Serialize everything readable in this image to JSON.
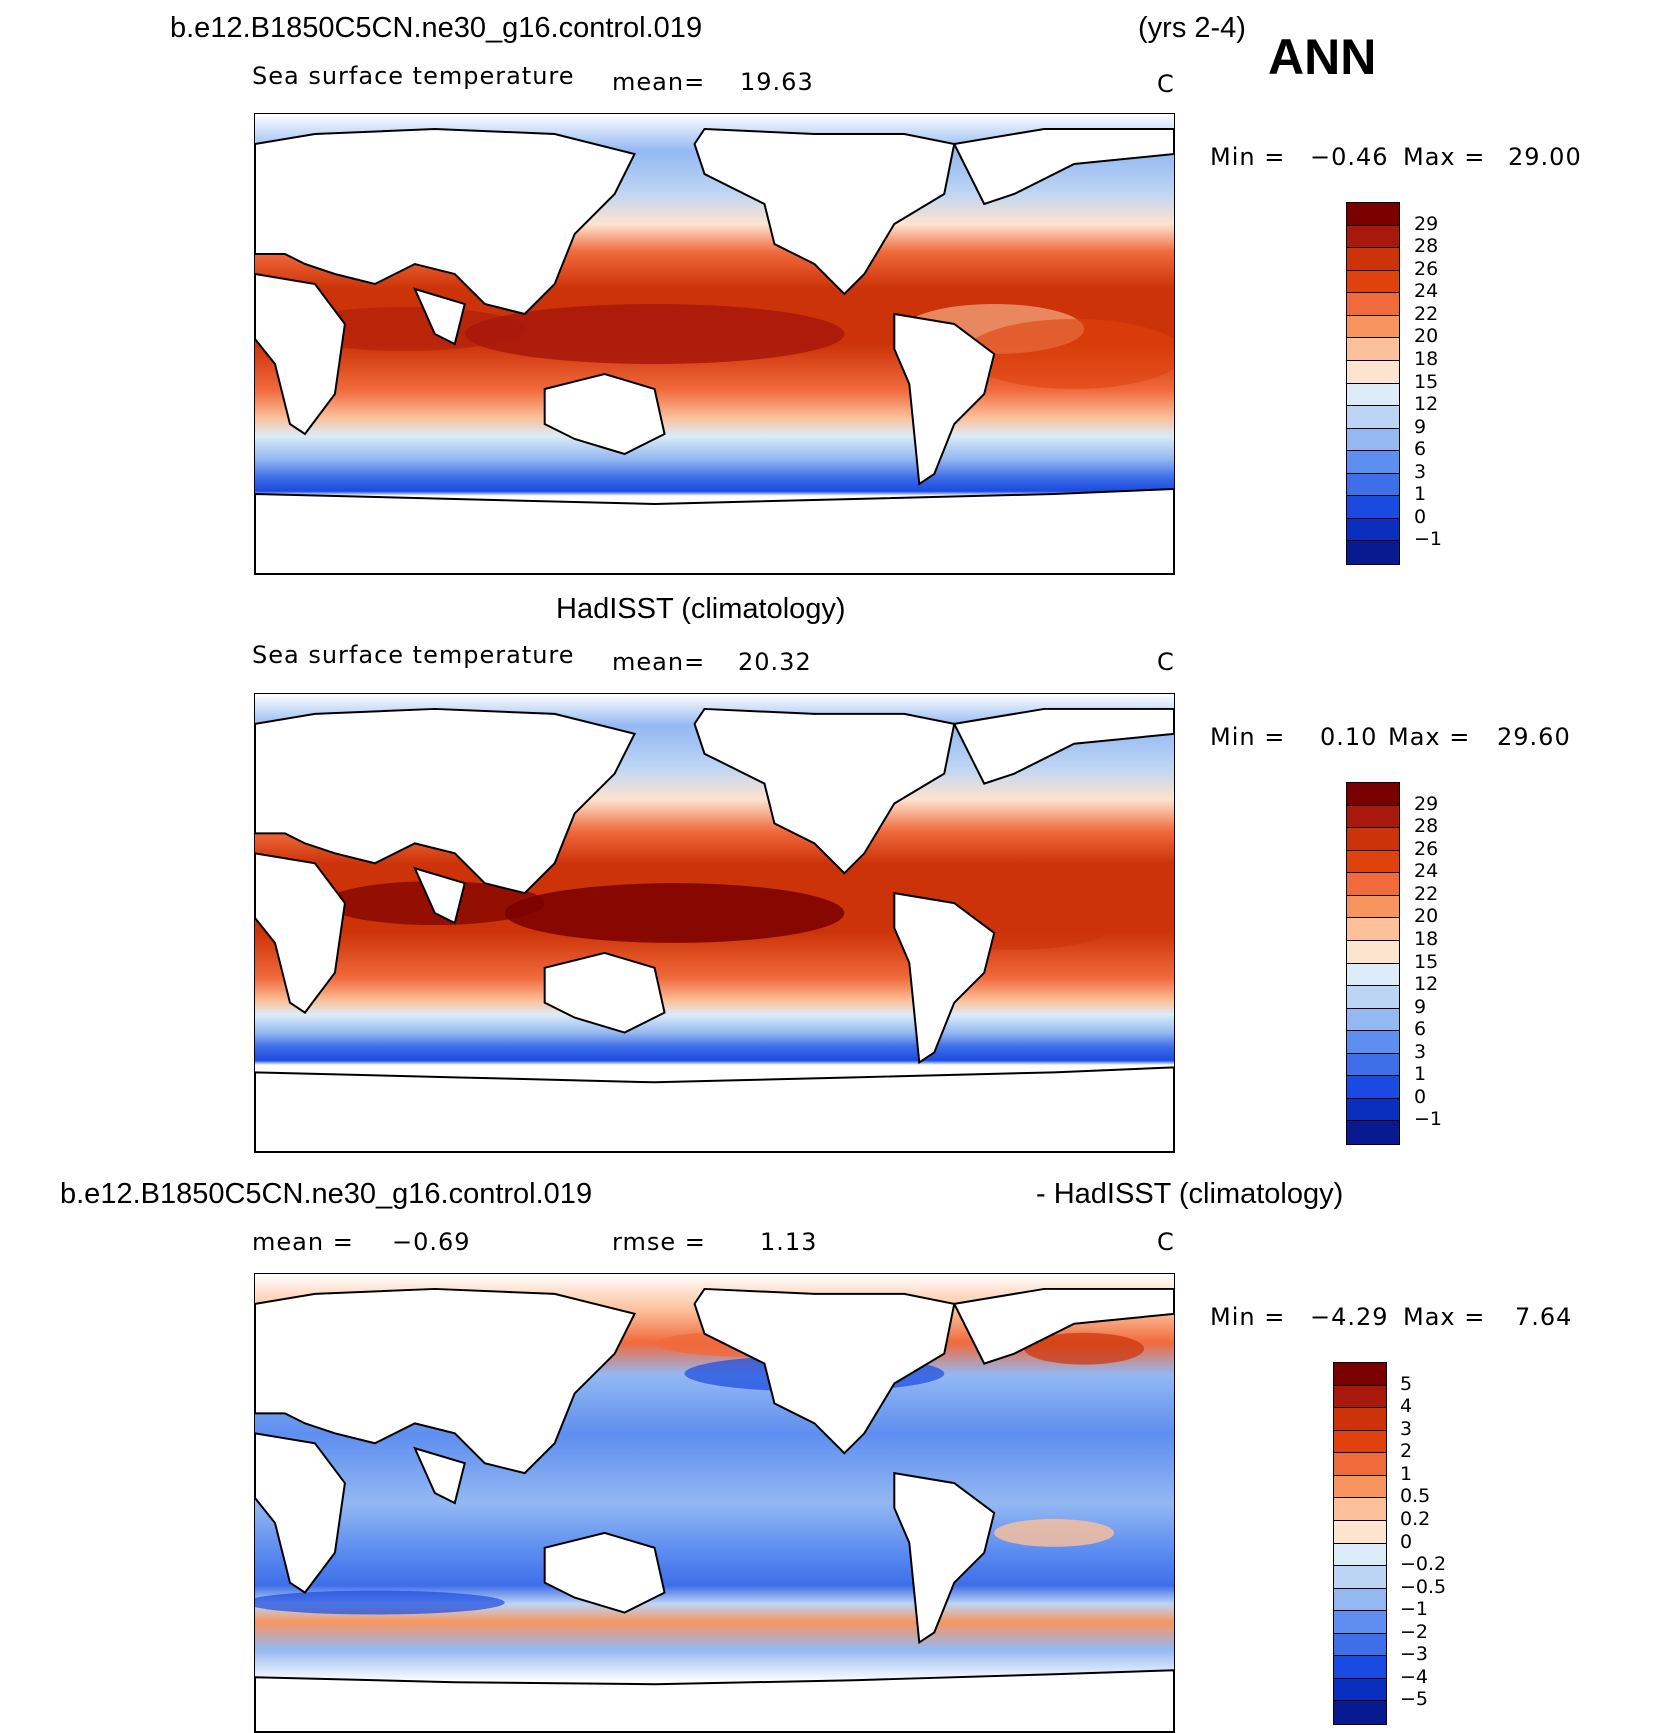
{
  "header": {
    "case_name": "b.e12.B1850C5CN.ne30_g16.control.019",
    "years": "(yrs 2-4)",
    "season": "ANN"
  },
  "panels": [
    {
      "id": "model",
      "title": "",
      "variable": "Sea surface temperature",
      "mean_label": "mean=",
      "mean_value": "19.63",
      "units": "C",
      "min_label": "Min =",
      "min_value": "−0.46",
      "max_label": "Max =",
      "max_value": "29.00",
      "colorbar": {
        "levels": [
          "29",
          "28",
          "26",
          "24",
          "22",
          "20",
          "18",
          "15",
          "12",
          "9",
          "6",
          "3",
          "1",
          "0",
          "−1"
        ],
        "colors": [
          "#7a0000",
          "#a8180c",
          "#cc3308",
          "#e0420e",
          "#f06a3c",
          "#f8955f",
          "#fcc09a",
          "#fde4cf",
          "#dcecf8",
          "#bdd5f5",
          "#93b8f2",
          "#5e8ef0",
          "#3e6ee8",
          "#1a4ae0",
          "#0a2fbf",
          "#071a8f"
        ]
      }
    },
    {
      "id": "obs",
      "title": "HadISST (climatology)",
      "variable": "Sea surface temperature",
      "mean_label": "mean=",
      "mean_value": "20.32",
      "units": "C",
      "min_label": "Min =",
      "min_value": "0.10",
      "max_label": "Max =",
      "max_value": "29.60",
      "colorbar": {
        "levels": [
          "29",
          "28",
          "26",
          "24",
          "22",
          "20",
          "18",
          "15",
          "12",
          "9",
          "6",
          "3",
          "1",
          "0",
          "−1"
        ],
        "colors": [
          "#7a0000",
          "#a8180c",
          "#cc3308",
          "#e0420e",
          "#f06a3c",
          "#f8955f",
          "#fcc09a",
          "#fde4cf",
          "#dcecf8",
          "#bdd5f5",
          "#93b8f2",
          "#5e8ef0",
          "#3e6ee8",
          "#1a4ae0",
          "#0a2fbf",
          "#071a8f"
        ]
      }
    },
    {
      "id": "diff",
      "title_left": "b.e12.B1850C5CN.ne30_g16.control.019",
      "title_right": "- HadISST (climatology)",
      "mean_label": "mean =",
      "mean_value": "−0.69",
      "rmse_label": "rmse =",
      "rmse_value": "1.13",
      "units": "C",
      "min_label": "Min =",
      "min_value": "−4.29",
      "max_label": "Max =",
      "max_value": "7.64",
      "colorbar": {
        "levels": [
          "5",
          "4",
          "3",
          "2",
          "1",
          "0.5",
          "0.2",
          "0",
          "−0.2",
          "−0.5",
          "−1",
          "−2",
          "−3",
          "−4",
          "−5"
        ],
        "colors": [
          "#7a0000",
          "#a8180c",
          "#cc3308",
          "#e0420e",
          "#f06a3c",
          "#f8955f",
          "#fcc09a",
          "#fde4cf",
          "#dcecf8",
          "#bdd5f5",
          "#93b8f2",
          "#5e8ef0",
          "#3e6ee8",
          "#1a4ae0",
          "#0a2fbf",
          "#071a8f"
        ]
      }
    }
  ]
}
